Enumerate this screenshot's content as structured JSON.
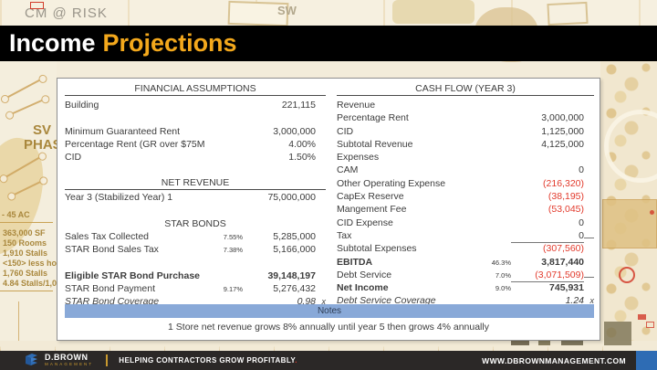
{
  "title": {
    "part1": "Income",
    "part2": "Projections"
  },
  "background": {
    "watermark_top_left": "CM @ RISK",
    "map_label_sw": "SW",
    "map_label_sv": "SV",
    "map_label_phas": "PHAS",
    "map_label_acres": "- 45 AC",
    "stats": [
      "363,000 SF",
      "150 Rooms",
      "1,910 Stalls",
      "<150> less hot",
      "1,760 Stalls",
      "4.84 Stalls/1,00"
    ]
  },
  "left_table": {
    "header": "FINANCIAL ASSUMPTIONS",
    "rows": [
      {
        "label": "Building",
        "value": "221,115"
      },
      {
        "type": "blank"
      },
      {
        "label": "Minimum Guaranteed Rent",
        "value": "3,000,000"
      },
      {
        "label": "Percentage Rent (GR over $75M)",
        "value": "4.00%"
      },
      {
        "label": "CID",
        "value": "1.50%"
      },
      {
        "type": "blank"
      },
      {
        "type": "section",
        "label": "NET REVENUE",
        "underline": true
      },
      {
        "label": "Year 3 (Stabilized Year) 1",
        "value": "75,000,000"
      },
      {
        "type": "blank"
      },
      {
        "type": "section",
        "label": "STAR BONDS"
      },
      {
        "label": "Sales Tax Collected",
        "pct": "7.55%",
        "value": "5,285,000"
      },
      {
        "label": "STAR Bond Sales Tax",
        "pct": "7.38%",
        "value": "5,166,000"
      },
      {
        "type": "blank"
      },
      {
        "label": "Eligible STAR Bond Purchase",
        "value": "39,148,197",
        "bold": true
      },
      {
        "label": "STAR Bond Payment",
        "pct": "9.17%",
        "value": "5,276,432"
      },
      {
        "label": "STAR Bond Coverage",
        "value": "0.98",
        "suffix": "x",
        "italic": true
      }
    ]
  },
  "right_table": {
    "header": "CASH FLOW (YEAR 3)",
    "rows": [
      {
        "label": "Revenue"
      },
      {
        "label": "Percentage Rent",
        "value": "3,000,000"
      },
      {
        "label": "CID",
        "value": "1,125,000"
      },
      {
        "label": "Subtotal Revenue",
        "value": "4,125,000"
      },
      {
        "label": "Expenses"
      },
      {
        "label": "CAM",
        "value": "0"
      },
      {
        "label": "Other Operating Expense",
        "value": "(216,320)",
        "negative": true
      },
      {
        "label": "CapEx Reserve",
        "value": "(38,195)",
        "negative": true
      },
      {
        "label": "Mangement Fee",
        "value": "(53,045)",
        "negative": true
      },
      {
        "label": "CID Expense",
        "value": "0"
      },
      {
        "label": "Tax",
        "value": "0",
        "value_underline": true
      },
      {
        "label": "Subtotal Expenses",
        "value": "(307,560)",
        "negative": true
      },
      {
        "label": "EBITDA",
        "pct": "46.3%",
        "value": "3,817,440",
        "bold": true
      },
      {
        "label": "Debt Service",
        "pct": "7.0%",
        "value": "(3,071,509)",
        "negative": true,
        "value_underline": true
      },
      {
        "label": "Net Income",
        "pct": "9.0%",
        "value": "745,931",
        "bold": true
      },
      {
        "label": "Debt Service Coverage",
        "value": "1.24",
        "suffix": "x",
        "italic": true
      }
    ]
  },
  "notes": {
    "header": "Notes",
    "text": "1 Store net revenue grows 8% annually until year 5 then grows 4% annually"
  },
  "footer": {
    "brand": "D.BROWN",
    "brand_sub": "MANAGEMENT",
    "tagline_main": "HELPING CONTRACTORS GROW PROFITABLY",
    "tagline_period": ".",
    "website": "WWW.DBROWNMANAGEMENT.COM"
  },
  "colors": {
    "title_accent": "#f3a81c",
    "negative_value": "#e23a2c",
    "notes_bar": "#89a9d8",
    "footer_blue": "#2e6cb4",
    "map_gold": "#a9873c"
  }
}
